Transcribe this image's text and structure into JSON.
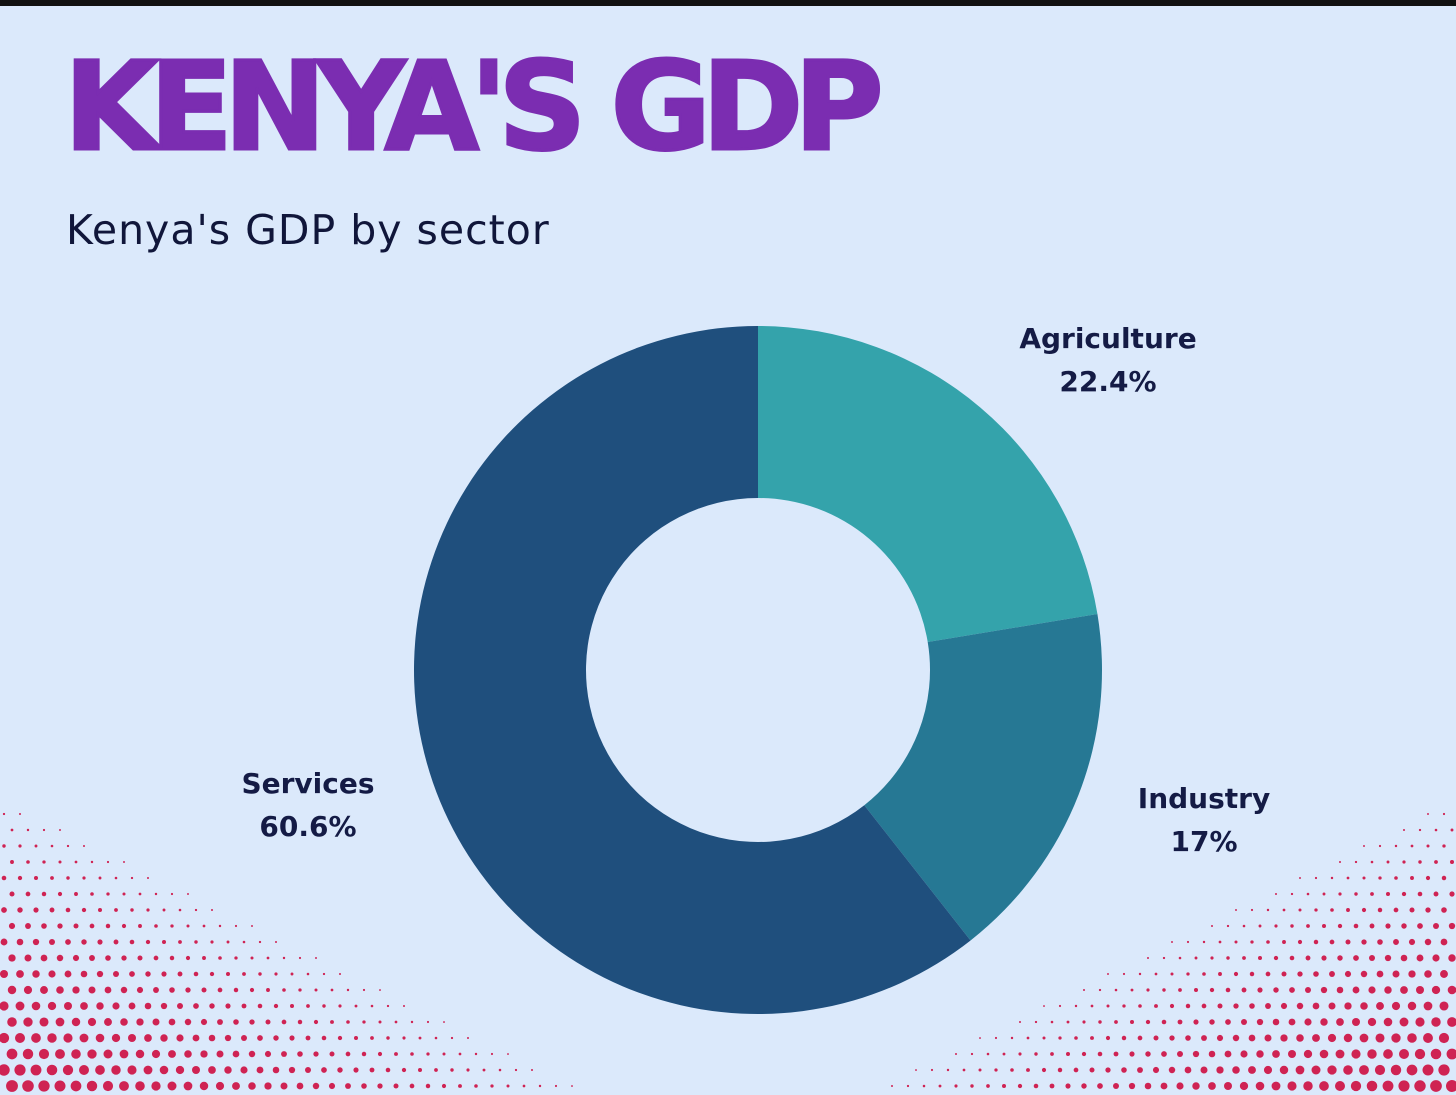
{
  "header": {
    "title": "KENYA'S GDP",
    "subtitle": "Kenya's GDP by sector"
  },
  "colors": {
    "background": "#dbe9fb",
    "title": "#7b2db1",
    "text": "#141b45",
    "halftone": "#cf2353"
  },
  "chart_data": {
    "type": "pie",
    "variant": "donut",
    "title": "Kenya's GDP by sector",
    "legend": "none",
    "slices": [
      {
        "label": "Agriculture",
        "value": 22.4,
        "display": "22.4%",
        "color": "#34a3ab"
      },
      {
        "label": "Industry",
        "value": 17,
        "display": "17%",
        "color": "#267894"
      },
      {
        "label": "Services",
        "value": 60.6,
        "display": "60.6%",
        "color": "#1f4f7d"
      }
    ]
  }
}
